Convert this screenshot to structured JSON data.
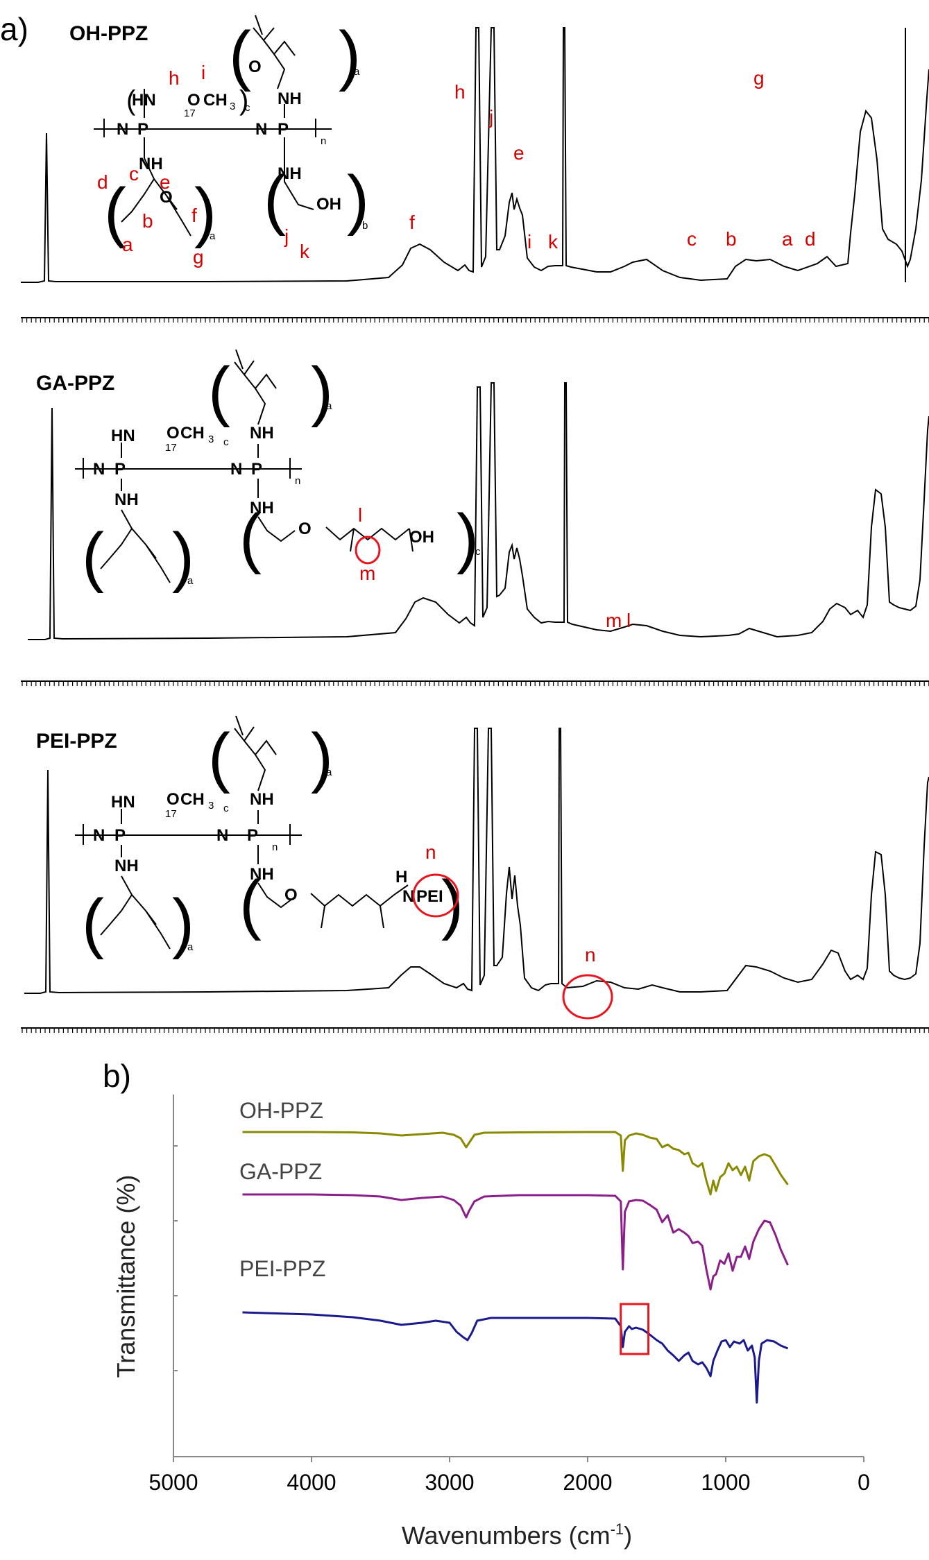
{
  "figure": {
    "panel_a_letter": "a)",
    "panel_b_letter": "b)"
  },
  "chart_data": [
    {
      "type": "line",
      "panel": "a",
      "description_axis": "x axis shown only as an unlabeled tick ruler",
      "spectra": [
        {
          "name": "OH-PPZ",
          "peak_labels": [
            "a",
            "b",
            "c",
            "d",
            "e",
            "f",
            "g",
            "h",
            "i",
            "j",
            "k"
          ],
          "structure": {
            "groups": [
              "HN",
              "O",
              "CH",
              "3",
              "17",
              "c",
              "N",
              "P",
              "N",
              "P",
              "n",
              "NH",
              "NH",
              "NH",
              "OH",
              "O",
              "O",
              "a",
              "a",
              "b"
            ],
            "atom_labels": [
              "a",
              "b",
              "c",
              "d",
              "e",
              "f",
              "g",
              "h",
              "i",
              "j",
              "k"
            ]
          }
        },
        {
          "name": "GA-PPZ",
          "peak_labels": [
            "m",
            "l"
          ],
          "structure": {
            "groups": [
              "HN",
              "O",
              "CH",
              "3",
              "17",
              "c",
              "N",
              "P",
              "N",
              "P",
              "n",
              "NH",
              "NH",
              "NH",
              "OH",
              "O",
              "a",
              "a",
              "c"
            ],
            "atom_labels": [
              "l",
              "m"
            ]
          }
        },
        {
          "name": "PEI-PPZ",
          "peak_labels": [
            "n"
          ],
          "structure": {
            "groups": [
              "HN",
              "O",
              "CH",
              "3",
              "17",
              "c",
              "N",
              "P",
              "N",
              "P",
              "n",
              "NH",
              "NH",
              "NH",
              "H",
              "N",
              "PEI",
              "O",
              "a",
              "a",
              "d"
            ],
            "atom_labels": [
              "n"
            ]
          }
        }
      ],
      "colors": {
        "spectrum_line": "#000000",
        "labels": "#d40000",
        "highlight": "#e8141e"
      }
    },
    {
      "type": "line",
      "panel": "b",
      "xlabel": "Wavenumbers (cm-1)",
      "xlabel_main": "Wavenumbers (cm",
      "xlabel_sup": "-1",
      "xlabel_close": ")",
      "ylabel": "Transmittance (%)",
      "xlim": [
        5000,
        0
      ],
      "x_reversed": true,
      "xticks": [
        5000,
        4000,
        3000,
        2000,
        1000,
        0
      ],
      "highlight_box_range": [
        1760,
        1560
      ],
      "series": [
        {
          "name": "OH-PPZ",
          "color": "#8a8a00",
          "points": [
            [
              4500,
              0
            ],
            [
              4000,
              0
            ],
            [
              3700,
              -0.5
            ],
            [
              3500,
              -2
            ],
            [
              3350,
              -5
            ],
            [
              3200,
              -3
            ],
            [
              3050,
              -1
            ],
            [
              2970,
              -4
            ],
            [
              2920,
              -9
            ],
            [
              2880,
              -22
            ],
            [
              2860,
              -16
            ],
            [
              2820,
              -4
            ],
            [
              2750,
              -1
            ],
            [
              2500,
              -0.5
            ],
            [
              2000,
              0
            ],
            [
              1800,
              0
            ],
            [
              1760,
              -5
            ],
            [
              1745,
              -56
            ],
            [
              1730,
              -12
            ],
            [
              1700,
              -5
            ],
            [
              1650,
              -2
            ],
            [
              1600,
              -4
            ],
            [
              1550,
              -8
            ],
            [
              1500,
              -10
            ],
            [
              1460,
              -22
            ],
            [
              1420,
              -18
            ],
            [
              1380,
              -24
            ],
            [
              1340,
              -26
            ],
            [
              1300,
              -32
            ],
            [
              1270,
              -30
            ],
            [
              1240,
              -45
            ],
            [
              1200,
              -50
            ],
            [
              1170,
              -45
            ],
            [
              1140,
              -70
            ],
            [
              1110,
              -90
            ],
            [
              1090,
              -70
            ],
            [
              1070,
              -85
            ],
            [
              1040,
              -65
            ],
            [
              1010,
              -60
            ],
            [
              980,
              -45
            ],
            [
              950,
              -55
            ],
            [
              920,
              -50
            ],
            [
              890,
              -62
            ],
            [
              860,
              -50
            ],
            [
              830,
              -70
            ],
            [
              800,
              -42
            ],
            [
              760,
              -35
            ],
            [
              720,
              -32
            ],
            [
              680,
              -35
            ],
            [
              640,
              -48
            ],
            [
              600,
              -62
            ],
            [
              550,
              -76
            ]
          ]
        },
        {
          "name": "GA-PPZ",
          "color": "#8a1f8a",
          "points": [
            [
              4500,
              0
            ],
            [
              4000,
              0
            ],
            [
              3700,
              -1
            ],
            [
              3500,
              -3
            ],
            [
              3350,
              -8
            ],
            [
              3200,
              -5
            ],
            [
              3050,
              -3
            ],
            [
              2970,
              -8
            ],
            [
              2920,
              -16
            ],
            [
              2880,
              -33
            ],
            [
              2860,
              -24
            ],
            [
              2820,
              -10
            ],
            [
              2750,
              -3
            ],
            [
              2500,
              -1
            ],
            [
              2000,
              -1
            ],
            [
              1800,
              -2
            ],
            [
              1760,
              -10
            ],
            [
              1745,
              -108
            ],
            [
              1730,
              -25
            ],
            [
              1700,
              -10
            ],
            [
              1650,
              -8
            ],
            [
              1600,
              -9
            ],
            [
              1550,
              -15
            ],
            [
              1500,
              -22
            ],
            [
              1460,
              -40
            ],
            [
              1420,
              -30
            ],
            [
              1380,
              -55
            ],
            [
              1340,
              -50
            ],
            [
              1300,
              -55
            ],
            [
              1270,
              -60
            ],
            [
              1240,
              -70
            ],
            [
              1200,
              -68
            ],
            [
              1170,
              -74
            ],
            [
              1140,
              -108
            ],
            [
              1110,
              -137
            ],
            [
              1090,
              -118
            ],
            [
              1070,
              -115
            ],
            [
              1040,
              -95
            ],
            [
              1010,
              -100
            ],
            [
              980,
              -85
            ],
            [
              950,
              -110
            ],
            [
              920,
              -90
            ],
            [
              890,
              -90
            ],
            [
              860,
              -75
            ],
            [
              830,
              -93
            ],
            [
              800,
              -68
            ],
            [
              760,
              -50
            ],
            [
              720,
              -38
            ],
            [
              680,
              -40
            ],
            [
              640,
              -58
            ],
            [
              600,
              -80
            ],
            [
              550,
              -102
            ]
          ]
        },
        {
          "name": "PEI-PPZ",
          "color": "#1a1a8c",
          "points": [
            [
              4500,
              0
            ],
            [
              4000,
              -3
            ],
            [
              3700,
              -7
            ],
            [
              3500,
              -12
            ],
            [
              3350,
              -18
            ],
            [
              3200,
              -15
            ],
            [
              3100,
              -12
            ],
            [
              3000,
              -15
            ],
            [
              2950,
              -28
            ],
            [
              2900,
              -36
            ],
            [
              2870,
              -40
            ],
            [
              2840,
              -30
            ],
            [
              2800,
              -12
            ],
            [
              2700,
              -8
            ],
            [
              2500,
              -8
            ],
            [
              2000,
              -8
            ],
            [
              1800,
              -9
            ],
            [
              1760,
              -20
            ],
            [
              1745,
              -50
            ],
            [
              1730,
              -28
            ],
            [
              1700,
              -20
            ],
            [
              1680,
              -24
            ],
            [
              1650,
              -22
            ],
            [
              1600,
              -25
            ],
            [
              1550,
              -32
            ],
            [
              1500,
              -40
            ],
            [
              1460,
              -45
            ],
            [
              1420,
              -55
            ],
            [
              1380,
              -62
            ],
            [
              1340,
              -70
            ],
            [
              1300,
              -62
            ],
            [
              1270,
              -58
            ],
            [
              1240,
              -70
            ],
            [
              1200,
              -75
            ],
            [
              1170,
              -72
            ],
            [
              1140,
              -80
            ],
            [
              1110,
              -92
            ],
            [
              1090,
              -70
            ],
            [
              1060,
              -55
            ],
            [
              1030,
              -42
            ],
            [
              1000,
              -40
            ],
            [
              970,
              -50
            ],
            [
              940,
              -42
            ],
            [
              900,
              -45
            ],
            [
              870,
              -40
            ],
            [
              840,
              -55
            ],
            [
              810,
              -48
            ],
            [
              790,
              -65
            ],
            [
              775,
              -130
            ],
            [
              760,
              -70
            ],
            [
              740,
              -45
            ],
            [
              700,
              -40
            ],
            [
              650,
              -42
            ],
            [
              600,
              -48
            ],
            [
              550,
              -52
            ]
          ]
        }
      ]
    }
  ]
}
